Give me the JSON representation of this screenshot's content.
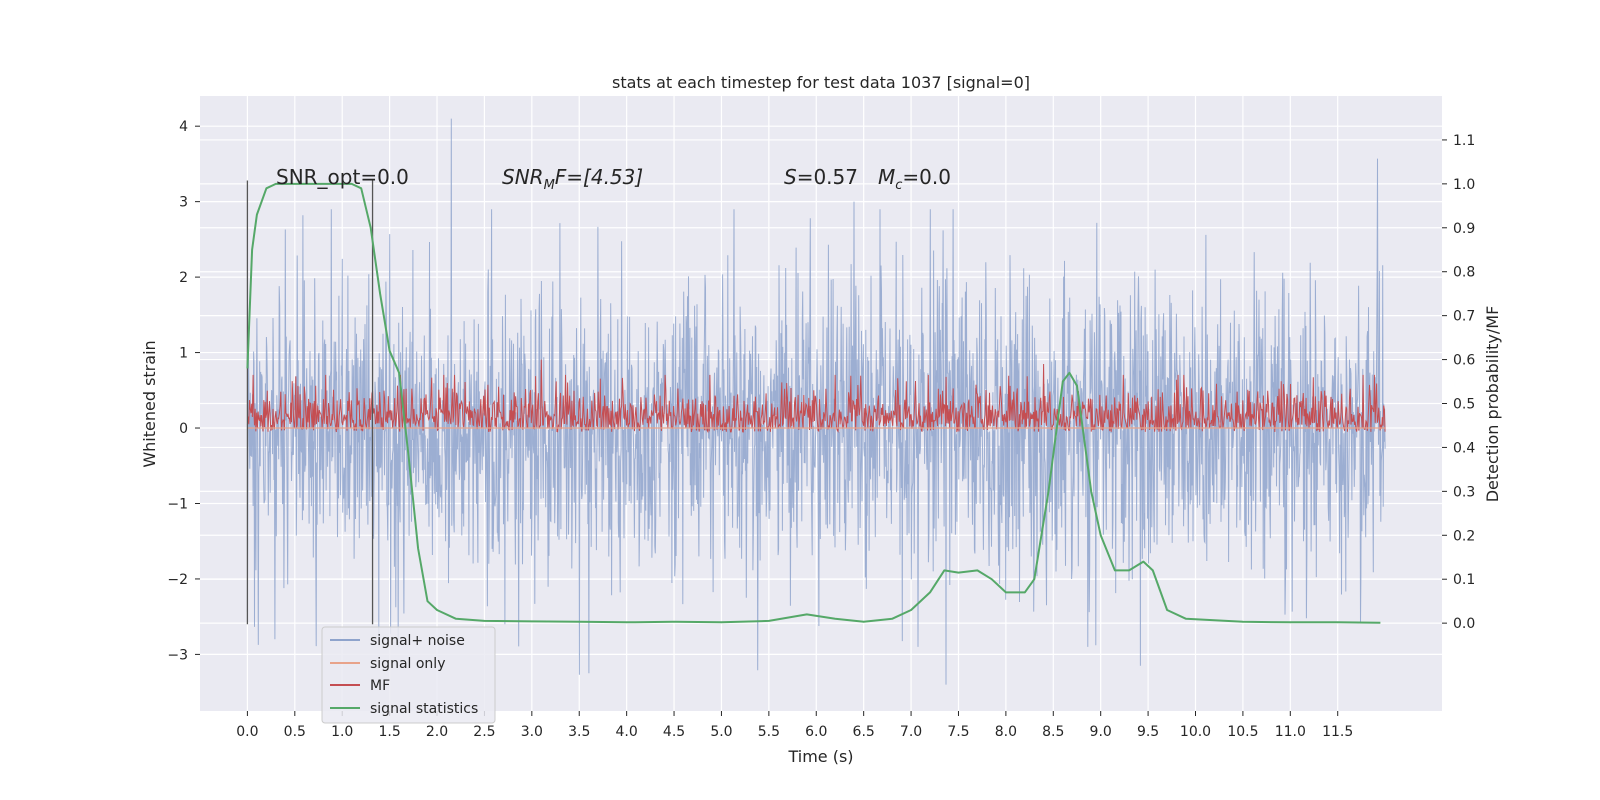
{
  "chart_data": {
    "type": "line",
    "title": "stats at each timestep for test data 1037 [signal=0]",
    "xlabel": "Time (s)",
    "ylabel_left": "Whitened strain",
    "ylabel_right": "Detection probability/MF",
    "xlim": [
      -0.5,
      12.6
    ],
    "ylim_left": [
      -3.75,
      4.4
    ],
    "ylim_right": [
      -0.2,
      1.2
    ],
    "x_ticks": [
      "0.0",
      "0.5",
      "1.0",
      "1.5",
      "2.0",
      "2.5",
      "3.0",
      "3.5",
      "4.0",
      "4.5",
      "5.0",
      "5.5",
      "6.0",
      "6.5",
      "7.0",
      "7.5",
      "8.0",
      "8.5",
      "9.0",
      "9.5",
      "10.0",
      "10.5",
      "11.0",
      "11.5"
    ],
    "y_ticks_left": [
      "−3",
      "−2",
      "−1",
      "0",
      "1",
      "2",
      "3",
      "4"
    ],
    "y_ticks_right": [
      "0.0",
      "0.1",
      "0.2",
      "0.3",
      "0.4",
      "0.5",
      "0.6",
      "0.7",
      "0.8",
      "0.9",
      "1.0",
      "1.1"
    ],
    "grid": true,
    "legend_position": "lower-left",
    "annotations": {
      "snr_opt": "SNR_opt=0.0",
      "snr_mf": "SNR<sub>M</sub>F=[4.53]",
      "snr_mf_main": "SNR",
      "snr_mf_sub": "M",
      "snr_mf_rest": "F=[4.53]",
      "s_label": "S",
      "s_value": "=0.57",
      "mc_label": "M",
      "mc_sub": "c",
      "mc_value": "=0.0"
    },
    "vlines": [
      0.0,
      1.32
    ],
    "vline_range": [
      -2.6,
      3.28
    ],
    "series": [
      {
        "name": "signal+ noise",
        "color": "#8ea3cc",
        "axis": "left",
        "x_range": [
          0.0,
          12.0
        ],
        "envelope_upper_typical": 1.5,
        "envelope_lower_typical": -1.5,
        "peaks": [
          {
            "x": 2.15,
            "y": 4.1
          },
          {
            "x": 11.92,
            "y": 3.57
          },
          {
            "x": 6.4,
            "y": 3.0
          },
          {
            "x": 3.5,
            "y": -3.27
          },
          {
            "x": 3.6,
            "y": -3.25
          },
          {
            "x": 7.37,
            "y": -3.4
          },
          {
            "x": 5.38,
            "y": -3.21
          },
          {
            "x": 9.42,
            "y": -3.15
          },
          {
            "x": 0.29,
            "y": -2.8
          },
          {
            "x": 8.95,
            "y": -2.88
          }
        ]
      },
      {
        "name": "signal only",
        "color": "#e8a38a",
        "axis": "left",
        "x": [
          0.0,
          12.0
        ],
        "y": [
          0.0,
          0.0
        ]
      },
      {
        "name": "MF",
        "color": "#c44e52",
        "axis": "right",
        "x_range": [
          0.0,
          12.0
        ],
        "baseline": 0.44,
        "upper_typical": 0.54,
        "peaks": [
          {
            "x": 3.1,
            "y": 0.6
          },
          {
            "x": 8.4,
            "y": 0.59
          }
        ]
      },
      {
        "name": "signal statistics",
        "color": "#55a868",
        "axis": "right",
        "x": [
          0.0,
          0.05,
          0.1,
          0.2,
          0.3,
          0.5,
          1.0,
          1.1,
          1.2,
          1.3,
          1.4,
          1.5,
          1.6,
          1.7,
          1.8,
          1.9,
          2.0,
          2.2,
          2.5,
          3.0,
          3.5,
          4.0,
          4.5,
          5.0,
          5.5,
          5.9,
          6.2,
          6.5,
          6.8,
          7.0,
          7.2,
          7.35,
          7.5,
          7.7,
          7.85,
          8.0,
          8.2,
          8.3,
          8.45,
          8.6,
          8.67,
          8.75,
          8.9,
          9.0,
          9.15,
          9.3,
          9.45,
          9.55,
          9.7,
          9.9,
          10.5,
          11.0,
          11.5,
          11.95
        ],
        "y": [
          0.58,
          0.85,
          0.93,
          0.99,
          1.0,
          1.0,
          1.0,
          1.0,
          0.99,
          0.9,
          0.75,
          0.62,
          0.57,
          0.38,
          0.17,
          0.05,
          0.03,
          0.01,
          0.005,
          0.004,
          0.003,
          0.002,
          0.003,
          0.002,
          0.005,
          0.02,
          0.01,
          0.003,
          0.01,
          0.03,
          0.07,
          0.12,
          0.115,
          0.12,
          0.1,
          0.07,
          0.07,
          0.1,
          0.3,
          0.55,
          0.57,
          0.54,
          0.3,
          0.2,
          0.12,
          0.12,
          0.14,
          0.12,
          0.03,
          0.01,
          0.003,
          0.002,
          0.002,
          0.001
        ]
      }
    ]
  }
}
